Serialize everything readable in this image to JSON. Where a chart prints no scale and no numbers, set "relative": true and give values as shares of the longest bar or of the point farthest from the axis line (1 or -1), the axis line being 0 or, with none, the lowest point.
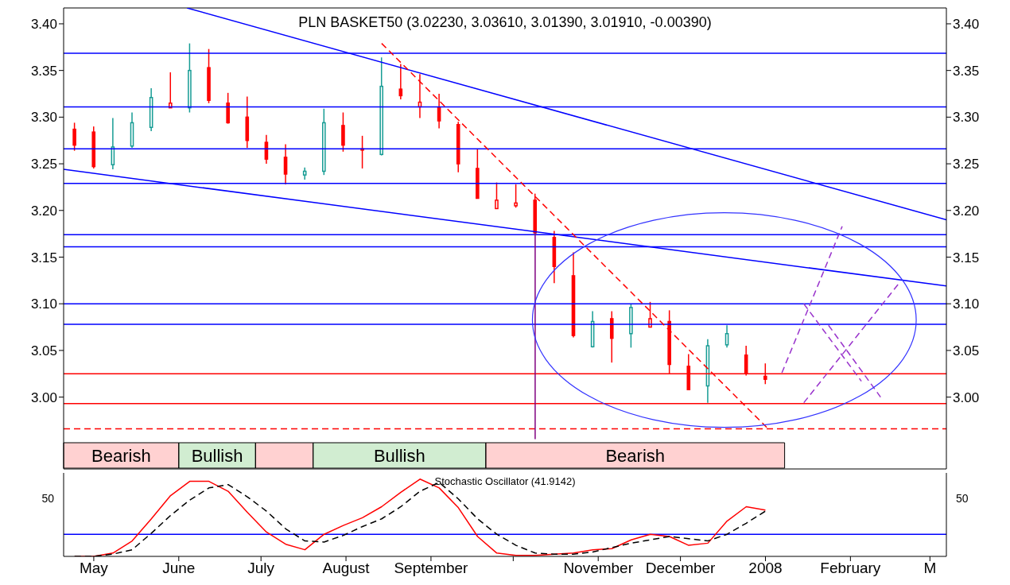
{
  "chart_data": [
    {
      "type": "candlestick",
      "title": "PLN BASKET50 (3.02230, 3.03610, 3.01390, 3.01910, -0.00390)",
      "x": [
        "2007-04-24",
        "2007-05-01",
        "2007-05-08",
        "2007-05-15",
        "2007-05-22",
        "2007-05-29",
        "2007-06-05",
        "2007-06-12",
        "2007-06-19",
        "2007-06-26",
        "2007-07-03",
        "2007-07-10",
        "2007-07-17",
        "2007-07-24",
        "2007-07-31",
        "2007-08-07",
        "2007-08-14",
        "2007-08-21",
        "2007-08-28",
        "2007-09-04",
        "2007-09-11",
        "2007-09-18",
        "2007-09-25",
        "2007-10-02",
        "2007-10-09",
        "2007-10-16",
        "2007-10-23",
        "2007-10-30",
        "2007-11-06",
        "2007-11-13",
        "2007-11-20",
        "2007-11-27",
        "2007-12-04",
        "2007-12-11",
        "2007-12-18",
        "2007-12-25",
        "2008-01-01"
      ],
      "ohlc": [
        [
          3.287,
          3.294,
          3.264,
          3.27
        ],
        [
          3.284,
          3.29,
          3.245,
          3.247
        ],
        [
          3.249,
          3.299,
          3.244,
          3.268
        ],
        [
          3.269,
          3.305,
          3.267,
          3.294
        ],
        [
          3.289,
          3.331,
          3.285,
          3.321
        ],
        [
          3.31,
          3.348,
          3.31,
          3.315
        ],
        [
          3.31,
          3.379,
          3.305,
          3.35
        ],
        [
          3.353,
          3.373,
          3.315,
          3.318
        ],
        [
          3.315,
          3.326,
          3.293,
          3.294
        ],
        [
          3.3,
          3.322,
          3.267,
          3.275
        ],
        [
          3.273,
          3.281,
          3.25,
          3.255
        ],
        [
          3.257,
          3.271,
          3.228,
          3.239
        ],
        [
          3.238,
          3.246,
          3.233,
          3.242
        ],
        [
          3.242,
          3.309,
          3.238,
          3.294
        ],
        [
          3.291,
          3.305,
          3.263,
          3.27
        ],
        [
          3.266,
          3.28,
          3.245,
          3.265
        ],
        [
          3.26,
          3.364,
          3.259,
          3.333
        ],
        [
          3.33,
          3.357,
          3.319,
          3.323
        ],
        [
          3.311,
          3.346,
          3.299,
          3.316
        ],
        [
          3.31,
          3.325,
          3.288,
          3.296
        ],
        [
          3.292,
          3.295,
          3.241,
          3.25
        ],
        [
          3.245,
          3.266,
          3.213,
          3.213
        ],
        [
          3.202,
          3.23,
          3.202,
          3.211
        ],
        [
          3.205,
          3.228,
          3.203,
          3.208
        ],
        [
          3.211,
          3.218,
          3.176,
          3.176
        ],
        [
          3.171,
          3.178,
          3.122,
          3.14
        ],
        [
          3.13,
          3.155,
          3.064,
          3.066
        ],
        [
          3.054,
          3.092,
          3.053,
          3.081
        ],
        [
          3.084,
          3.092,
          3.037,
          3.063
        ],
        [
          3.068,
          3.1,
          3.053,
          3.096
        ],
        [
          3.075,
          3.102,
          3.075,
          3.084
        ],
        [
          3.081,
          3.093,
          3.025,
          3.035
        ],
        [
          3.033,
          3.046,
          3.008,
          3.008
        ],
        [
          3.012,
          3.062,
          2.994,
          3.055
        ],
        [
          3.056,
          3.077,
          3.053,
          3.068
        ],
        [
          3.045,
          3.055,
          3.023,
          3.025
        ],
        [
          3.0223,
          3.0361,
          3.0139,
          3.0191
        ]
      ],
      "colors": [
        "#ff0000",
        "#ff0000",
        "#169c94",
        "#169c94",
        "#169c94",
        "#ff0000",
        "#169c94",
        "#ff0000",
        "#ff0000",
        "#ff0000",
        "#ff0000",
        "#ff0000",
        "#169c94",
        "#169c94",
        "#ff0000",
        "#ff0000",
        "#169c94",
        "#ff0000",
        "#ff0000",
        "#ff0000",
        "#ff0000",
        "#ff0000",
        "#ff0000",
        "#ff0000",
        "#ff0000",
        "#ff0000",
        "#ff0000",
        "#169c94",
        "#ff0000",
        "#169c94",
        "#ff0000",
        "#ff0000",
        "#ff0000",
        "#169c94",
        "#169c94",
        "#ff0000",
        "#ff0000"
      ],
      "series": [
        {
          "type": "line",
          "x": [
            "2007-06-04",
            "2008-03-07"
          ],
          "values": [
            3.417,
            3.19
          ],
          "color": "#0000ff",
          "line_style": "solid"
        },
        {
          "type": "line",
          "x": [
            "2007-04-20",
            "2008-03-07"
          ],
          "values": [
            3.244,
            3.119
          ],
          "color": "#0000ff",
          "line_style": "solid"
        },
        {
          "type": "line",
          "x": [
            "2007-08-14",
            "2008-01-02"
          ],
          "values": [
            3.379,
            2.966
          ],
          "color": "#ff0000",
          "line_style": "dashed"
        },
        {
          "type": "line",
          "x": [
            "2007-10-09",
            "2007-10-09"
          ],
          "values": [
            3.176,
            2.955
          ],
          "color": "#800080",
          "line_style": "solid"
        },
        {
          "type": "line",
          "x": [
            "2008-01-07",
            "2008-01-29"
          ],
          "values": [
            3.026,
            3.183
          ],
          "color": "#9933cc",
          "line_style": "dashed"
        },
        {
          "type": "line",
          "x": [
            "2008-01-15",
            "2008-02-19"
          ],
          "values": [
            2.994,
            3.123
          ],
          "color": "#9933cc",
          "line_style": "dashed"
        },
        {
          "type": "line",
          "x": [
            "2008-01-15",
            "2008-02-05"
          ],
          "values": [
            3.1,
            3.017
          ],
          "color": "#9933cc",
          "line_style": "dashed"
        },
        {
          "type": "line",
          "x": [
            "2008-01-24",
            "2008-02-12"
          ],
          "values": [
            3.077,
            3.0
          ],
          "color": "#9933cc",
          "line_style": "dashed"
        }
      ],
      "ref_lines": [
        {
          "axis": "y",
          "value": 3.3685,
          "color": "#0000ff"
        },
        {
          "axis": "y",
          "value": 3.311,
          "color": "#0000ff"
        },
        {
          "axis": "y",
          "value": 3.266,
          "color": "#0000ff"
        },
        {
          "axis": "y",
          "value": 3.229,
          "color": "#0000ff"
        },
        {
          "axis": "y",
          "value": 3.174,
          "color": "#0000ff"
        },
        {
          "axis": "y",
          "value": 3.161,
          "color": "#0000ff"
        },
        {
          "axis": "y",
          "value": 3.1,
          "color": "#0000ff"
        },
        {
          "axis": "y",
          "value": 3.078,
          "color": "#0000ff"
        },
        {
          "axis": "y",
          "value": 3.025,
          "color": "#ff0000"
        },
        {
          "axis": "y",
          "value": 2.993,
          "color": "#ff0000"
        },
        {
          "axis": "y",
          "value": 2.966,
          "color": "#ff0000",
          "line_style": "dashed"
        }
      ],
      "bands": [
        {
          "axis": "x",
          "from": "2007-04-20",
          "to": "2007-06-01",
          "label": "Bearish",
          "color": "#ff0000"
        },
        {
          "axis": "x",
          "from": "2007-06-01",
          "to": "2007-06-29",
          "label": "Bullish",
          "color": "#009900"
        },
        {
          "axis": "x",
          "from": "2007-06-29",
          "to": "2007-07-20",
          "label": null,
          "color": "#ff0000"
        },
        {
          "axis": "x",
          "from": "2007-07-20",
          "to": "2007-09-21",
          "label": "Bullish",
          "color": "#009900"
        },
        {
          "axis": "x",
          "from": "2007-09-21",
          "to": "2008-01-08",
          "label": "Bearish",
          "color": "#ff0000"
        }
      ],
      "xlim": [
        "2007-04-20",
        "2008-03-07"
      ],
      "ylim": [
        2.923,
        3.417
      ],
      "yticks": [
        {
          "value": 3.0,
          "label": "3.00"
        },
        {
          "value": 3.05,
          "label": "3.05"
        },
        {
          "value": 3.1,
          "label": "3.10"
        },
        {
          "value": 3.15,
          "label": "3.15"
        },
        {
          "value": 3.2,
          "label": "3.20"
        },
        {
          "value": 3.25,
          "label": "3.25"
        },
        {
          "value": 3.3,
          "label": "3.30"
        },
        {
          "value": 3.35,
          "label": "3.35"
        },
        {
          "value": 3.4,
          "label": "3.40"
        }
      ],
      "y2lim": [
        2.923,
        3.417
      ],
      "y2ticks": [
        {
          "value": 3.0,
          "label": "3.00"
        },
        {
          "value": 3.05,
          "label": "3.05"
        },
        {
          "value": 3.1,
          "label": "3.10"
        },
        {
          "value": 3.15,
          "label": "3.15"
        },
        {
          "value": 3.2,
          "label": "3.20"
        },
        {
          "value": 3.25,
          "label": "3.25"
        },
        {
          "value": 3.3,
          "label": "3.30"
        },
        {
          "value": 3.35,
          "label": "3.35"
        },
        {
          "value": 3.4,
          "label": "3.40"
        }
      ],
      "tick_labels": "y"
    },
    {
      "type": "line",
      "title": "Stochastic Oscillator (41.9142)",
      "x": [
        "2007-04-24",
        "2007-05-01",
        "2007-05-08",
        "2007-05-15",
        "2007-05-22",
        "2007-05-29",
        "2007-06-05",
        "2007-06-12",
        "2007-06-19",
        "2007-06-26",
        "2007-07-03",
        "2007-07-10",
        "2007-07-17",
        "2007-07-24",
        "2007-07-31",
        "2007-08-07",
        "2007-08-14",
        "2007-08-21",
        "2007-08-28",
        "2007-09-04",
        "2007-09-11",
        "2007-09-18",
        "2007-09-25",
        "2007-10-02",
        "2007-10-09",
        "2007-10-16",
        "2007-10-23",
        "2007-10-30",
        "2007-11-06",
        "2007-11-13",
        "2007-11-20",
        "2007-11-27",
        "2007-12-04",
        "2007-12-11",
        "2007-12-18",
        "2007-12-25",
        "2008-01-01"
      ],
      "series": [
        {
          "color": "#ff0000",
          "line_style": "solid",
          "values": [
            0,
            0,
            0.043,
            0.2,
            0.486,
            0.786,
            0.971,
            0.971,
            0.843,
            0.571,
            0.314,
            0.157,
            0.086,
            0.286,
            0.4,
            0.5,
            0.643,
            0.829,
            1,
            0.886,
            0.629,
            0.257,
            0.043,
            0.014,
            0.014,
            0.029,
            0.043,
            0.086,
            0.1,
            0.214,
            0.286,
            0.257,
            0.143,
            0.171,
            0.457,
            0.643,
            0.6
          ]
        },
        {
          "color": "#000000",
          "line_style": "dashed",
          "values": [
            0,
            0,
            0.029,
            0.086,
            0.3,
            0.529,
            0.729,
            0.886,
            0.929,
            0.771,
            0.586,
            0.357,
            0.2,
            0.186,
            0.271,
            0.386,
            0.486,
            0.643,
            0.843,
            0.957,
            0.743,
            0.486,
            0.286,
            0.143,
            0.043,
            0.029,
            0.029,
            0.057,
            0.114,
            0.171,
            0.214,
            0.257,
            0.229,
            0.2,
            0.286,
            0.429,
            0.586
          ]
        }
      ],
      "relative": true,
      "annotations": [
        "50",
        "50"
      ],
      "ref_lines": [
        {
          "axis": "y",
          "value": 0.286,
          "color": "#0000ff"
        }
      ],
      "xlim": [
        "2007-04-20",
        "2008-03-07"
      ],
      "xticks": [
        {
          "value": "2007-05-01",
          "label": "May"
        },
        {
          "value": "2007-06-01",
          "label": "June"
        },
        {
          "value": "2007-07-01",
          "label": "July"
        },
        {
          "value": "2007-08-01",
          "label": "August"
        },
        {
          "value": "2007-09-01",
          "label": "September"
        },
        {
          "value": "2007-10-01",
          "label": null
        },
        {
          "value": "2007-11-01",
          "label": "November"
        },
        {
          "value": "2007-12-01",
          "label": "December"
        },
        {
          "value": "2008-01-01",
          "label": "2008"
        },
        {
          "value": "2008-02-01",
          "label": "February"
        },
        {
          "value": "2008-03-01",
          "label": "M"
        }
      ],
      "tick_labels": "x"
    }
  ]
}
